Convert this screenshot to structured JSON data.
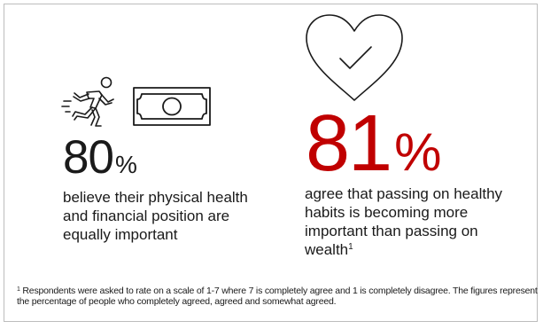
{
  "stat1": {
    "value": "80",
    "unit": "%",
    "description": "believe their physical health and financial position are equally important"
  },
  "stat2": {
    "value": "81",
    "unit": "%",
    "description": "agree that passing on healthy habits is becoming more important than passing on wealth",
    "footnote_marker": "1"
  },
  "footnote": {
    "marker": "1",
    "text": " Respondents were asked to rate on a scale of 1-7 where 7 is completely agree and 1 is completely disagree. The figures represent the percentage of people who completely agreed, agreed and somewhat agreed."
  },
  "colors": {
    "accent": "#c00000",
    "text": "#1a1a1a",
    "border": "#bdbdbd"
  },
  "icons": [
    "running-person-icon",
    "money-bill-icon",
    "heart-check-icon"
  ]
}
